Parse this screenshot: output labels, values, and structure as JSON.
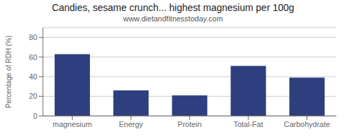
{
  "chart_data": {
    "type": "bar",
    "title": "Candies, sesame crunch... highest magnesium per 100g",
    "subtitle": "www.dietandfitnesstoday.com",
    "categories": [
      "magnesium",
      "Energy",
      "Protein",
      "Total-Fat",
      "Carbohydrate"
    ],
    "values": [
      63,
      26,
      21,
      51,
      39
    ],
    "color": "#2e3f7f",
    "ylabel": "Percentage of RDH (%)",
    "ylim": [
      0,
      90
    ],
    "yticks": [
      0,
      20,
      40,
      60,
      80
    ],
    "grid": true
  }
}
